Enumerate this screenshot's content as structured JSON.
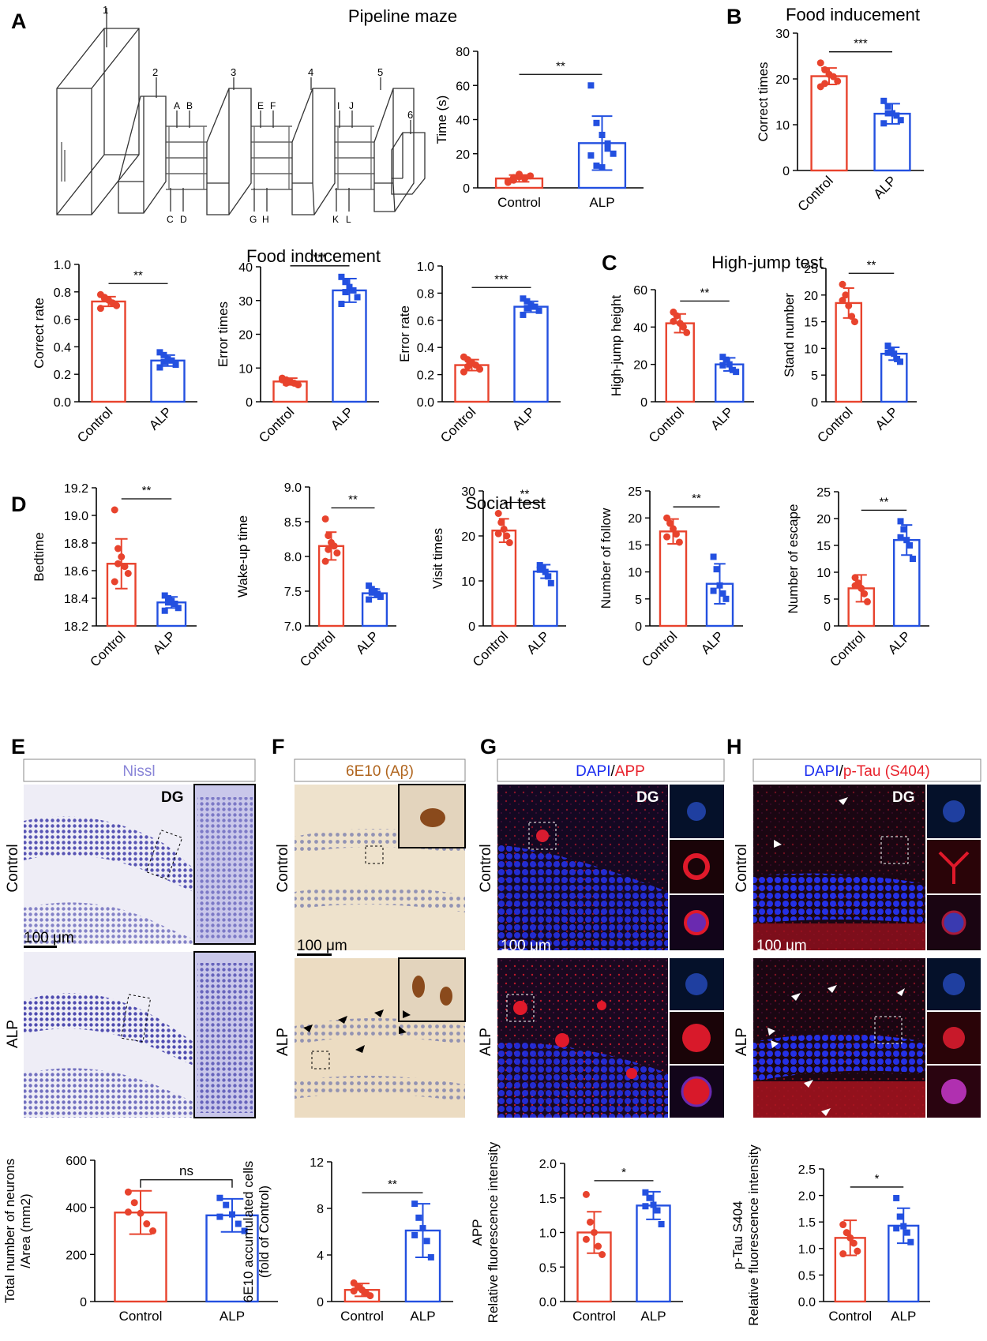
{
  "colors": {
    "control": "#e8432d",
    "alp": "#2350e0",
    "dapi": "#1a2cf0",
    "red": "#e8202a",
    "nissl": "#8a86d8",
    "brown": "#b0651e"
  },
  "panel_letters": [
    "A",
    "B",
    "C",
    "D",
    "E",
    "F",
    "G",
    "H"
  ],
  "section_titles": {
    "pipeline_maze": "Pipeline maze",
    "food_inducement_b": "Food inducement",
    "food_inducement_row2": "Food inducement",
    "high_jump": "High-jump test",
    "social": "Social test"
  },
  "maze_labels": {
    "boxes": [
      "1",
      "2",
      "3",
      "4",
      "5",
      "6"
    ],
    "letters": [
      "A",
      "B",
      "C",
      "D",
      "E",
      "F",
      "G",
      "H",
      "I",
      "J",
      "K",
      "L"
    ]
  },
  "micrographs": {
    "E": {
      "header": "Nissl",
      "region": "DG",
      "rows": [
        "Control",
        "ALP"
      ],
      "scale": "100 μm"
    },
    "F": {
      "header": "6E10 (Aβ)",
      "rows": [
        "Control",
        "ALP"
      ],
      "scale": "100 μm"
    },
    "G": {
      "header_a": "DAPI",
      "header_sep": "/",
      "header_b": "APP",
      "region": "DG",
      "rows": [
        "Control",
        "ALP"
      ],
      "scale": "100 μm"
    },
    "H": {
      "header_a": "DAPI",
      "header_sep": "/",
      "header_b": "p-Tau (S404)",
      "region": "DG",
      "rows": [
        "Control",
        "ALP"
      ],
      "scale": "100 μm"
    }
  },
  "chart_data": [
    {
      "id": "A-time",
      "type": "bar",
      "categories": [
        "Control",
        "ALP"
      ],
      "values": [
        5.5,
        26.2
      ],
      "errors": [
        2,
        15.8
      ],
      "ylabel": "Time (s)",
      "ylim": [
        0,
        80
      ],
      "yticks": [
        0,
        20,
        40,
        60,
        80
      ],
      "sig": "**",
      "points": [
        [
          3.2,
          4.5,
          6.5,
          5.5,
          7.0,
          4.0,
          6.0,
          8.0
        ],
        [
          60.0,
          38.0,
          31.0,
          23.0,
          20.0,
          19.0,
          13.0,
          12.0,
          26.0
        ]
      ]
    },
    {
      "id": "B-correct-times",
      "type": "bar",
      "categories": [
        "Control",
        "ALP"
      ],
      "values": [
        20.6,
        12.4
      ],
      "errors": [
        1.8,
        2.2
      ],
      "ylabel": "Correct times",
      "ylim": [
        0,
        30
      ],
      "yticks": [
        0,
        10,
        20,
        30
      ],
      "sig": "***",
      "points": [
        [
          23.5,
          22.0,
          21.0,
          20.5,
          19.5,
          18.3,
          19.0
        ],
        [
          15.2,
          14.0,
          12.5,
          12.0,
          11.0,
          10.3,
          12.5
        ]
      ]
    },
    {
      "id": "A-correct-rate",
      "type": "bar",
      "categories": [
        "Control",
        "ALP"
      ],
      "values": [
        0.73,
        0.3
      ],
      "errors": [
        0.035,
        0.04
      ],
      "ylabel": "Correct rate",
      "ylim": [
        0,
        1.0
      ],
      "yticks": [
        "0.0",
        "0.2",
        "0.4",
        "0.6",
        "0.8",
        "1.0"
      ],
      "sig": "**",
      "points": [
        [
          0.78,
          0.76,
          0.74,
          0.72,
          0.7,
          0.68,
          0.75
        ],
        [
          0.36,
          0.34,
          0.31,
          0.3,
          0.27,
          0.25,
          0.29
        ]
      ]
    },
    {
      "id": "A-error-times",
      "type": "bar",
      "categories": [
        "Control",
        "ALP"
      ],
      "values": [
        6,
        33
      ],
      "errors": [
        1,
        3.5
      ],
      "ylabel": "Error times",
      "ylim": [
        0,
        40
      ],
      "yticks": [
        0,
        10,
        20,
        30,
        40
      ],
      "sig": "***",
      "points": [
        [
          7.0,
          6.5,
          6.0,
          5.5,
          5.0,
          6.5,
          5.5
        ],
        [
          37.0,
          35.5,
          34.0,
          33.0,
          31.0,
          29.0,
          32.5
        ]
      ]
    },
    {
      "id": "A-error-rate",
      "type": "bar",
      "categories": [
        "Control",
        "ALP"
      ],
      "values": [
        0.27,
        0.7
      ],
      "errors": [
        0.04,
        0.04
      ],
      "ylabel": "Error rate",
      "ylim": [
        0,
        1.0
      ],
      "yticks": [
        "0.0",
        "0.2",
        "0.4",
        "0.6",
        "0.8",
        "1.0"
      ],
      "sig": "***",
      "points": [
        [
          0.33,
          0.31,
          0.29,
          0.27,
          0.24,
          0.22,
          0.26
        ],
        [
          0.76,
          0.74,
          0.71,
          0.7,
          0.67,
          0.64,
          0.69
        ]
      ]
    },
    {
      "id": "C-high-jump-height",
      "type": "bar",
      "categories": [
        "Control",
        "ALP"
      ],
      "values": [
        42,
        20
      ],
      "errors": [
        5,
        3.5
      ],
      "ylabel": "High-jump height",
      "ylim": [
        0,
        60
      ],
      "yticks": [
        0,
        20,
        40,
        60
      ],
      "sig": "**",
      "points": [
        [
          48.0,
          46.0,
          42.0,
          40.0,
          37.0,
          43.0
        ],
        [
          24.0,
          22.5,
          20.0,
          17.0,
          16.0,
          19.5
        ]
      ]
    },
    {
      "id": "C-stand-number",
      "type": "bar",
      "categories": [
        "Control",
        "ALP"
      ],
      "values": [
        18.5,
        9
      ],
      "errors": [
        2.8,
        1.2
      ],
      "ylabel": "Stand number",
      "ylim": [
        0,
        25
      ],
      "yticks": [
        0,
        5,
        10,
        15,
        20,
        25
      ],
      "sig": "**",
      "points": [
        [
          22.0,
          20.0,
          18.0,
          16.0,
          15.0,
          19.0
        ],
        [
          10.5,
          9.5,
          9.0,
          8.0,
          7.5,
          9.2
        ]
      ]
    },
    {
      "id": "D-bedtime",
      "type": "bar",
      "categories": [
        "Control",
        "ALP"
      ],
      "values": [
        18.65,
        18.37
      ],
      "errors": [
        0.18,
        0.04
      ],
      "ylabel": "Bedtime",
      "ylim": [
        18.2,
        19.2
      ],
      "yticks": [
        "18.2",
        "18.4",
        "18.6",
        "18.8",
        "19.0",
        "19.2"
      ],
      "sig": "**",
      "points": [
        [
          19.04,
          18.76,
          18.7,
          18.63,
          18.58,
          18.52,
          18.65
        ],
        [
          18.42,
          18.4,
          18.38,
          18.36,
          18.33,
          18.31,
          18.37
        ]
      ]
    },
    {
      "id": "D-wake-up-time",
      "type": "bar",
      "categories": [
        "Control",
        "ALP"
      ],
      "values": [
        8.15,
        7.47
      ],
      "errors": [
        0.2,
        0.06
      ],
      "ylabel": "Wake-up time",
      "ylim": [
        7.0,
        9.0
      ],
      "yticks": [
        "7.0",
        "7.5",
        "8.0",
        "8.5",
        "9.0"
      ],
      "sig": "**",
      "points": [
        [
          8.54,
          8.3,
          8.2,
          8.15,
          8.05,
          7.93,
          8.1
        ],
        [
          7.58,
          7.53,
          7.5,
          7.46,
          7.42,
          7.38,
          7.48
        ]
      ]
    },
    {
      "id": "D-visit-times",
      "type": "bar",
      "categories": [
        "Control",
        "ALP"
      ],
      "values": [
        21.2,
        12.1
      ],
      "errors": [
        2.6,
        1.5
      ],
      "ylabel": "Visit times",
      "ylim": [
        0,
        30
      ],
      "yticks": [
        0,
        10,
        20,
        30
      ],
      "sig": "**",
      "points": [
        [
          25.0,
          23.0,
          21.5,
          20.0,
          18.5,
          20.5
        ],
        [
          13.5,
          13.0,
          12.0,
          11.0,
          9.5,
          12.5
        ]
      ]
    },
    {
      "id": "D-number-of-follow",
      "type": "bar",
      "categories": [
        "Control",
        "ALP"
      ],
      "values": [
        17.5,
        7.8
      ],
      "errors": [
        2.3,
        3.7
      ],
      "ylabel": "Number of follow",
      "ylim": [
        0,
        25
      ],
      "yticks": [
        0,
        5,
        10,
        15,
        20,
        25
      ],
      "sig": "**",
      "points": [
        [
          20.0,
          19.0,
          18.0,
          17.0,
          15.5,
          16.5
        ],
        [
          12.8,
          10.5,
          7.5,
          6.0,
          5.0,
          6.5
        ]
      ]
    },
    {
      "id": "D-number-of-escape",
      "type": "bar",
      "categories": [
        "Control",
        "ALP"
      ],
      "values": [
        7,
        16
      ],
      "errors": [
        2.5,
        2.8
      ],
      "ylabel": "Number of escape",
      "ylim": [
        0,
        25
      ],
      "yticks": [
        0,
        5,
        10,
        15,
        20,
        25
      ],
      "sig": "**",
      "points": [
        [
          9.0,
          8.0,
          7.0,
          6.0,
          4.5,
          7.5
        ],
        [
          19.5,
          18.0,
          16.0,
          15.0,
          12.5,
          16.5
        ]
      ]
    },
    {
      "id": "E-neurons",
      "type": "bar",
      "categories": [
        "Control",
        "ALP"
      ],
      "values": [
        378,
        366
      ],
      "errors": [
        92,
        70
      ],
      "ylabel": "Total number of neurons /Area (mm2)",
      "ylabel_lines": [
        "Total number of neurons",
        "/Area (mm2)"
      ],
      "ylim": [
        0,
        600
      ],
      "yticks": [
        0,
        200,
        400,
        600
      ],
      "sig": "ns",
      "points": [
        [
          465,
          420,
          375,
          330,
          300,
          380
        ],
        [
          440,
          410,
          370,
          330,
          300,
          360
        ]
      ]
    },
    {
      "id": "F-6e10",
      "type": "bar",
      "categories": [
        "Control",
        "ALP"
      ],
      "values": [
        1.0,
        6.1
      ],
      "errors": [
        0.55,
        2.3
      ],
      "ylabel": "6E10 accumulated cells (fold of Control)",
      "ylabel_lines": [
        "6E10 accumulated cells",
        "(fold of Control)"
      ],
      "ylim": [
        0,
        12
      ],
      "yticks": [
        0,
        4,
        8,
        12
      ],
      "sig": "**",
      "points": [
        [
          1.6,
          1.3,
          1.0,
          0.7,
          0.5,
          0.9
        ],
        [
          8.4,
          7.2,
          6.3,
          5.2,
          3.8,
          5.7
        ]
      ]
    },
    {
      "id": "G-app",
      "type": "bar",
      "categories": [
        "Control",
        "ALP"
      ],
      "values": [
        1.0,
        1.39
      ],
      "errors": [
        0.3,
        0.2
      ],
      "ylabel": "APP Relative fluorescence intensity",
      "ylabel_lines": [
        "APP",
        "Relative fluorescence intensity"
      ],
      "ylim": [
        0,
        2.0
      ],
      "yticks": [
        "0.0",
        "0.5",
        "1.0",
        "1.5",
        "2.0"
      ],
      "sig": "*",
      "points": [
        [
          1.55,
          1.15,
          1.0,
          0.8,
          0.68,
          0.9
        ],
        [
          1.58,
          1.5,
          1.4,
          1.32,
          1.12,
          1.38
        ]
      ]
    },
    {
      "id": "H-ptau",
      "type": "bar",
      "categories": [
        "Control",
        "ALP"
      ],
      "values": [
        1.2,
        1.43
      ],
      "errors": [
        0.33,
        0.33
      ],
      "ylabel": "p-Tau S404 Relative fluorescence intensity",
      "ylabel_lines": [
        "p-Tau S404",
        "Relative fluorescence intensity"
      ],
      "ylim": [
        0,
        2.5
      ],
      "yticks": [
        "0.0",
        "0.5",
        "1.0",
        "1.5",
        "2.0",
        "2.5"
      ],
      "sig": "*",
      "points": [
        [
          1.45,
          1.3,
          1.2,
          1.1,
          0.95,
          0.9
        ],
        [
          1.95,
          1.6,
          1.42,
          1.3,
          1.12,
          1.38
        ]
      ]
    }
  ]
}
